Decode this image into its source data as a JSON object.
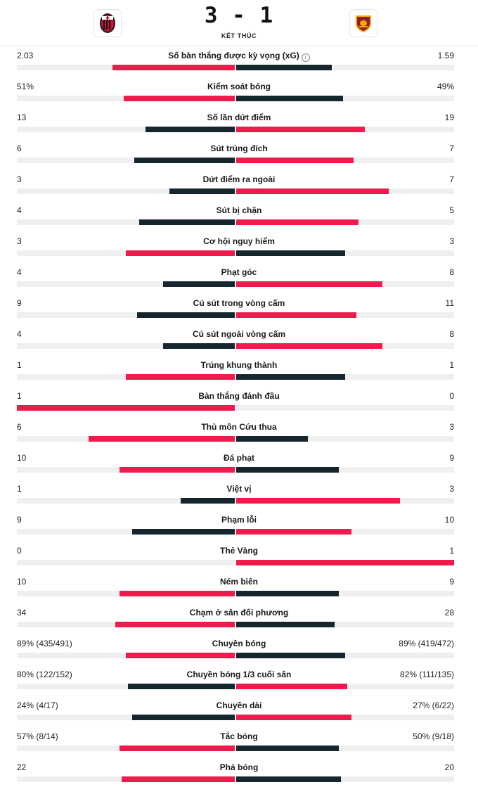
{
  "match": {
    "score": "3 - 1",
    "status": "KẾT THÚC",
    "home_logo": "ac-milan-crest-icon",
    "away_logo": "as-roma-crest-icon"
  },
  "colors": {
    "home": "#ee1b4c",
    "away": "#15262f",
    "track": "#efefef"
  },
  "stats": [
    {
      "label": "Số bàn thắng được kỳ vọng (xG)",
      "home": "2.03",
      "away": "1.59",
      "home_share": 0.56,
      "away_share": 0.44,
      "info": true
    },
    {
      "label": "Kiểm soát bóng",
      "home": "51%",
      "away": "49%",
      "home_share": 0.51,
      "away_share": 0.49
    },
    {
      "label": "Số lần dứt điểm",
      "home": "13",
      "away": "19",
      "home_share": 0.41,
      "away_share": 0.59
    },
    {
      "label": "Sút trúng đích",
      "home": "6",
      "away": "7",
      "home_share": 0.46,
      "away_share": 0.54
    },
    {
      "label": "Dứt điểm ra ngoài",
      "home": "3",
      "away": "7",
      "home_share": 0.3,
      "away_share": 0.7
    },
    {
      "label": "Sút bị chặn",
      "home": "4",
      "away": "5",
      "home_share": 0.44,
      "away_share": 0.56
    },
    {
      "label": "Cơ hội nguy hiểm",
      "home": "3",
      "away": "3",
      "home_share": 0.5,
      "away_share": 0.5
    },
    {
      "label": "Phạt góc",
      "home": "4",
      "away": "8",
      "home_share": 0.33,
      "away_share": 0.67
    },
    {
      "label": "Cú sút trong vòng cấm",
      "home": "9",
      "away": "11",
      "home_share": 0.45,
      "away_share": 0.55
    },
    {
      "label": "Cú sút ngoài vòng cấm",
      "home": "4",
      "away": "8",
      "home_share": 0.33,
      "away_share": 0.67
    },
    {
      "label": "Trúng khung thành",
      "home": "1",
      "away": "1",
      "home_share": 0.5,
      "away_share": 0.5
    },
    {
      "label": "Bàn thắng đánh đầu",
      "home": "1",
      "away": "0",
      "home_share": 1.0,
      "away_share": 0.0
    },
    {
      "label": "Thủ môn Cứu thua",
      "home": "6",
      "away": "3",
      "home_share": 0.67,
      "away_share": 0.33
    },
    {
      "label": "Đá phạt",
      "home": "10",
      "away": "9",
      "home_share": 0.53,
      "away_share": 0.47
    },
    {
      "label": "Việt vị",
      "home": "1",
      "away": "3",
      "home_share": 0.25,
      "away_share": 0.75
    },
    {
      "label": "Phạm lỗi",
      "home": "9",
      "away": "10",
      "home_share": 0.47,
      "away_share": 0.53
    },
    {
      "label": "Thẻ Vàng",
      "home": "0",
      "away": "1",
      "home_share": 0.0,
      "away_share": 1.0
    },
    {
      "label": "Ném biên",
      "home": "10",
      "away": "9",
      "home_share": 0.53,
      "away_share": 0.47
    },
    {
      "label": "Chạm ở sân đối phương",
      "home": "34",
      "away": "28",
      "home_share": 0.55,
      "away_share": 0.45
    },
    {
      "label": "Chuyền bóng",
      "home": "89% (435/491)",
      "away": "89% (419/472)",
      "home_share": 0.5,
      "away_share": 0.5
    },
    {
      "label": "Chuyền bóng 1/3 cuối sân",
      "home": "80% (122/152)",
      "away": "82% (111/135)",
      "home_share": 0.49,
      "away_share": 0.51
    },
    {
      "label": "Chuyền dài",
      "home": "24% (4/17)",
      "away": "27% (6/22)",
      "home_share": 0.47,
      "away_share": 0.53
    },
    {
      "label": "Tắc bóng",
      "home": "57% (8/14)",
      "away": "50% (9/18)",
      "home_share": 0.53,
      "away_share": 0.47
    },
    {
      "label": "Phá bóng",
      "home": "22",
      "away": "20",
      "home_share": 0.52,
      "away_share": 0.48
    }
  ]
}
